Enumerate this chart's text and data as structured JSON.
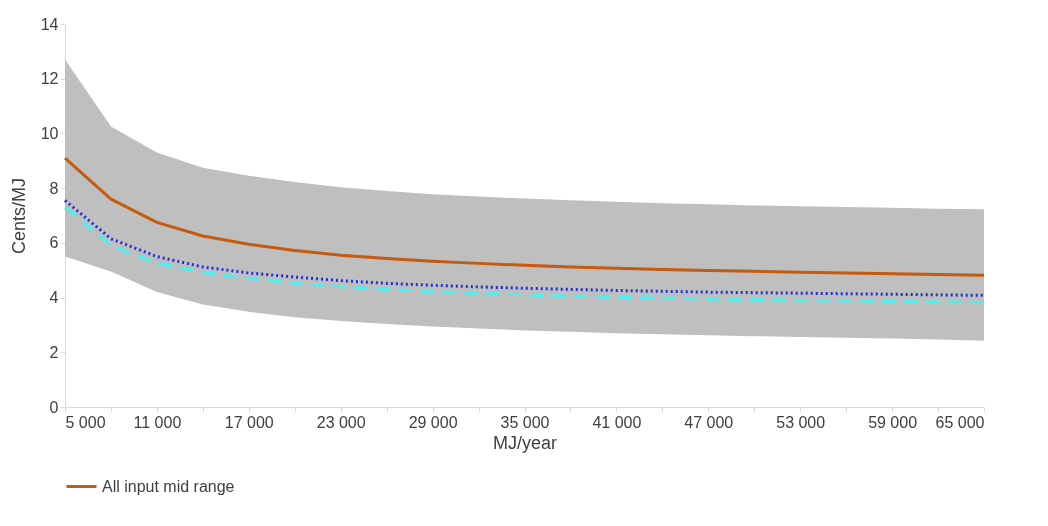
{
  "chart_data": {
    "type": "line",
    "xlabel": "MJ/year",
    "ylabel": "Cents/MJ",
    "x": [
      5000,
      8000,
      11000,
      14000,
      17000,
      20000,
      23000,
      26000,
      29000,
      32000,
      35000,
      38000,
      41000,
      44000,
      47000,
      50000,
      53000,
      56000,
      59000,
      62000,
      65000
    ],
    "xlim": [
      5000,
      65000
    ],
    "ylim": [
      0,
      14
    ],
    "yticks": [
      0,
      2,
      4,
      6,
      8,
      10,
      12,
      14
    ],
    "xticks": [
      {
        "value": 5000,
        "label": "5 000"
      },
      {
        "value": 8000,
        "label": null
      },
      {
        "value": 11000,
        "label": "11 000"
      },
      {
        "value": 14000,
        "label": null
      },
      {
        "value": 17000,
        "label": "17 000"
      },
      {
        "value": 20000,
        "label": null
      },
      {
        "value": 23000,
        "label": "23 000"
      },
      {
        "value": 26000,
        "label": null
      },
      {
        "value": 29000,
        "label": "29 000"
      },
      {
        "value": 32000,
        "label": null
      },
      {
        "value": 35000,
        "label": "35 000"
      },
      {
        "value": 38000,
        "label": null
      },
      {
        "value": 41000,
        "label": "41 000"
      },
      {
        "value": 44000,
        "label": null
      },
      {
        "value": 47000,
        "label": "47 000"
      },
      {
        "value": 50000,
        "label": null
      },
      {
        "value": 53000,
        "label": "53 000"
      },
      {
        "value": 56000,
        "label": null
      },
      {
        "value": 59000,
        "label": "59 000"
      },
      {
        "value": 62000,
        "label": null
      },
      {
        "value": 65000,
        "label": "65 000"
      }
    ],
    "grid": false,
    "legend": "bottom",
    "marker": "none",
    "series": [
      {
        "color": "#4df0f0",
        "line_style": "dashed",
        "values": [
          7.3,
          5.9,
          5.25,
          4.92,
          4.7,
          4.53,
          4.4,
          4.3,
          4.22,
          4.15,
          4.1,
          4.05,
          4.01,
          3.98,
          3.95,
          3.93,
          3.9,
          3.88,
          3.86,
          3.84,
          3.82
        ]
      },
      {
        "color": "#1f2fd6",
        "line_style": "dotted",
        "values": [
          7.55,
          6.15,
          5.5,
          5.12,
          4.9,
          4.75,
          4.62,
          4.52,
          4.45,
          4.39,
          4.34,
          4.3,
          4.26,
          4.23,
          4.2,
          4.18,
          4.16,
          4.14,
          4.12,
          4.1,
          4.08
        ]
      },
      {
        "name": "All input mid range",
        "color": "#c55a11",
        "line_style": "solid",
        "values": [
          9.1,
          7.6,
          6.75,
          6.25,
          5.95,
          5.72,
          5.55,
          5.43,
          5.33,
          5.25,
          5.18,
          5.12,
          5.07,
          5.03,
          4.99,
          4.96,
          4.93,
          4.9,
          4.87,
          4.84,
          4.82
        ],
        "lower": [
          5.5,
          4.95,
          4.2,
          3.75,
          3.48,
          3.28,
          3.14,
          3.03,
          2.94,
          2.87,
          2.8,
          2.75,
          2.7,
          2.66,
          2.62,
          2.59,
          2.56,
          2.53,
          2.5,
          2.47,
          2.42
        ],
        "upper": [
          12.7,
          10.25,
          9.3,
          8.75,
          8.45,
          8.22,
          8.03,
          7.9,
          7.78,
          7.69,
          7.62,
          7.56,
          7.5,
          7.45,
          7.41,
          7.37,
          7.34,
          7.31,
          7.28,
          7.25,
          7.23
        ]
      }
    ]
  }
}
